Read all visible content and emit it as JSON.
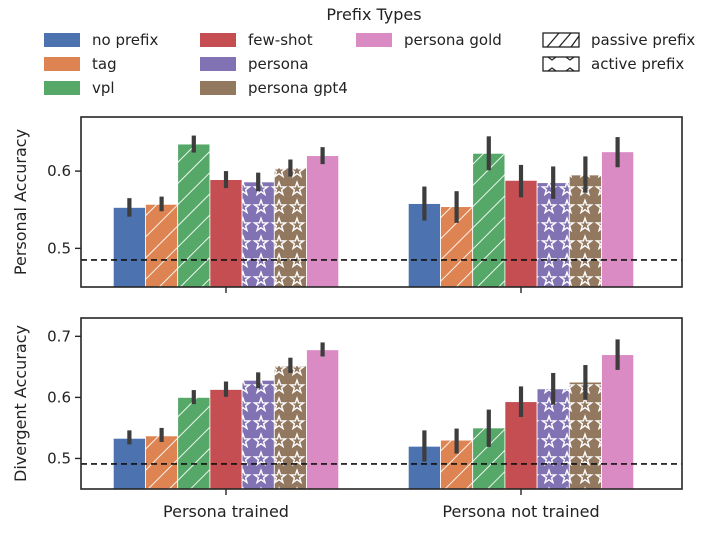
{
  "chart_data": {
    "type": "bar",
    "legend": {
      "title": "Prefix Types",
      "position": "top",
      "pattern_entries": [
        {
          "name": "passive prefix",
          "pattern": "hatch"
        },
        {
          "name": "active prefix",
          "pattern": "stars"
        }
      ]
    },
    "categories": [
      "Persona trained",
      "Persona not trained"
    ],
    "series": [
      {
        "name": "no prefix",
        "color": "#4c72b0",
        "pattern": "none"
      },
      {
        "name": "tag",
        "color": "#dd8452",
        "pattern": "hatch"
      },
      {
        "name": "vpl",
        "color": "#55a868",
        "pattern": "hatch"
      },
      {
        "name": "few-shot",
        "color": "#c44e52",
        "pattern": "none"
      },
      {
        "name": "persona",
        "color": "#8172b3",
        "pattern": "stars"
      },
      {
        "name": "persona gpt4",
        "color": "#937860",
        "pattern": "stars"
      },
      {
        "name": "persona gold",
        "color": "#da8bc3",
        "pattern": "none"
      }
    ],
    "panels": [
      {
        "ylabel": "Personal Accuracy",
        "ylim": [
          0.45,
          0.67
        ],
        "yticks": [
          0.5,
          0.6
        ],
        "ytick_labels": [
          "0.5",
          "0.6"
        ],
        "baseline": 0.485,
        "values": [
          [
            0.553,
            0.557,
            0.635,
            0.589,
            0.586,
            0.604,
            0.62
          ],
          [
            0.558,
            0.554,
            0.623,
            0.588,
            0.585,
            0.595,
            0.625
          ]
        ],
        "errors": [
          [
            [
              0.541,
              0.565
            ],
            [
              0.548,
              0.567
            ],
            [
              0.624,
              0.646
            ],
            [
              0.578,
              0.6
            ],
            [
              0.574,
              0.598
            ],
            [
              0.593,
              0.615
            ],
            [
              0.609,
              0.631
            ]
          ],
          [
            [
              0.536,
              0.58
            ],
            [
              0.533,
              0.574
            ],
            [
              0.601,
              0.645
            ],
            [
              0.566,
              0.608
            ],
            [
              0.564,
              0.606
            ],
            [
              0.572,
              0.619
            ],
            [
              0.605,
              0.644
            ]
          ]
        ]
      },
      {
        "ylabel": "Divergent Accuracy",
        "ylim": [
          0.45,
          0.73
        ],
        "yticks": [
          0.5,
          0.6,
          0.7
        ],
        "ytick_labels": [
          "0.5",
          "0.6",
          "0.7"
        ],
        "baseline": 0.491,
        "values": [
          [
            0.533,
            0.537,
            0.6,
            0.613,
            0.628,
            0.652,
            0.678
          ],
          [
            0.52,
            0.53,
            0.55,
            0.593,
            0.614,
            0.625,
            0.67
          ]
        ],
        "errors": [
          [
            [
              0.523,
              0.546
            ],
            [
              0.527,
              0.55
            ],
            [
              0.589,
              0.612
            ],
            [
              0.601,
              0.626
            ],
            [
              0.615,
              0.641
            ],
            [
              0.64,
              0.665
            ],
            [
              0.667,
              0.69
            ]
          ],
          [
            [
              0.495,
              0.546
            ],
            [
              0.508,
              0.549
            ],
            [
              0.519,
              0.58
            ],
            [
              0.568,
              0.618
            ],
            [
              0.588,
              0.64
            ],
            [
              0.596,
              0.653
            ],
            [
              0.645,
              0.695
            ]
          ]
        ]
      }
    ]
  }
}
